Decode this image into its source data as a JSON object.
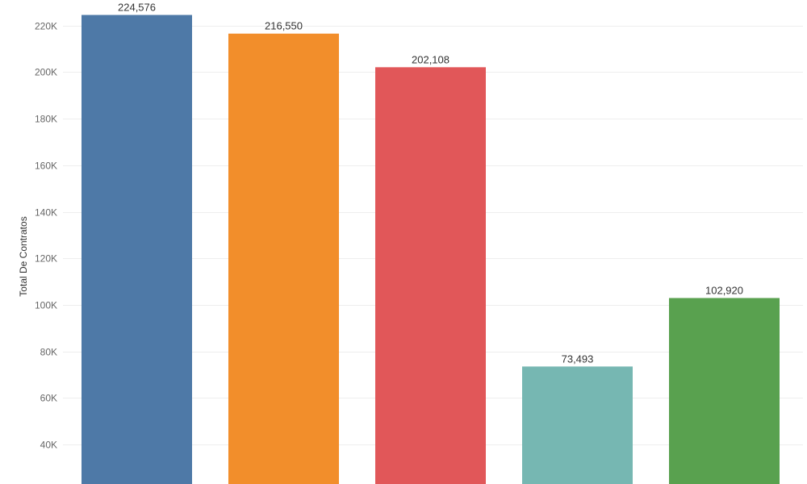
{
  "chart_data": {
    "type": "bar",
    "title": "",
    "xlabel": "",
    "ylabel": "Total De Contratos",
    "ylim": [
      23000,
      231000
    ],
    "grid": true,
    "yticks": [
      40000,
      60000,
      80000,
      100000,
      120000,
      140000,
      160000,
      180000,
      200000,
      220000
    ],
    "ytick_labels": [
      "40K",
      "60K",
      "80K",
      "100K",
      "120K",
      "140K",
      "160K",
      "180K",
      "200K",
      "220K"
    ],
    "values": [
      224576,
      216550,
      202108,
      73493,
      102920
    ],
    "value_labels": [
      "224,576",
      "216,550",
      "202,108",
      "73,493",
      "102,920"
    ],
    "colors": [
      "#4e79a7",
      "#f28e2b",
      "#e15759",
      "#76b7b2",
      "#59a14f"
    ]
  }
}
